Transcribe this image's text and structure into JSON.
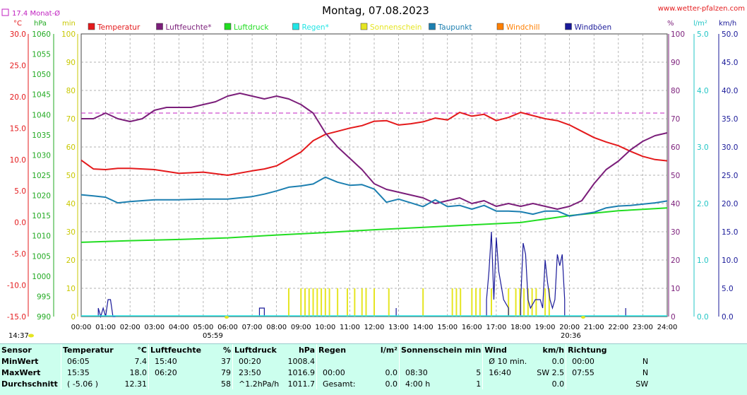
{
  "header": {
    "title": "Montag, 07.08.2023",
    "website": "www.wetter-pfalzen.com",
    "monthly_avg": "17.4 Monat-Ø",
    "monthly_avg_value": 17.4,
    "axis_units_left": [
      "°C",
      "hPa",
      "min"
    ],
    "axis_units_right": [
      "%",
      "l/m²",
      "km/h"
    ]
  },
  "legend": [
    {
      "label": "Temperatur",
      "color": "#e41a1c"
    },
    {
      "label": "Luftfeuchte*",
      "color": "#7b1e7a"
    },
    {
      "label": "Luftdruck",
      "color": "#22dd22"
    },
    {
      "label": "Regen*",
      "color": "#22e5e5"
    },
    {
      "label": "Sonnenschein",
      "color": "#e5e522"
    },
    {
      "label": "Taupunkt",
      "color": "#1c7fb0"
    },
    {
      "label": "Windchill",
      "color": "#ff7f00"
    },
    {
      "label": "Windböen",
      "color": "#1a1a99"
    }
  ],
  "markers": {
    "sunrise": "05:59",
    "sunset": "20:36",
    "current_time": "14:37"
  },
  "chart_data": {
    "type": "line",
    "x_ticks": [
      "00:00",
      "01:00",
      "02:00",
      "03:00",
      "04:00",
      "05:00",
      "06:00",
      "07:00",
      "08:00",
      "09:00",
      "10:00",
      "11:00",
      "12:00",
      "13:00",
      "14:00",
      "15:00",
      "16:00",
      "17:00",
      "18:00",
      "19:00",
      "20:00",
      "21:00",
      "22:00",
      "23:00",
      "24:00"
    ],
    "axes": {
      "temperature": {
        "unit": "°C",
        "range": [
          -15,
          30
        ],
        "ticks": [
          "30.0",
          "25.0",
          "20.0",
          "15.0",
          "10.0",
          "5.0",
          "0.0",
          "-5.0",
          "-10.0",
          "-15.0"
        ]
      },
      "pressure": {
        "unit": "hPa",
        "range": [
          990,
          1060
        ],
        "ticks": [
          "1060",
          "1055",
          "1050",
          "1045",
          "1040",
          "1035",
          "1030",
          "1025",
          "1020",
          "1015",
          "1010",
          "1005",
          "1000",
          "995",
          "990"
        ]
      },
      "minutes": {
        "unit": "min",
        "range": [
          0,
          100
        ],
        "ticks": [
          "100",
          "90",
          "80",
          "70",
          "60",
          "50",
          "40",
          "30",
          "20",
          "10",
          "0"
        ]
      },
      "humidity": {
        "unit": "%",
        "range": [
          0,
          100
        ],
        "ticks": [
          "100",
          "90",
          "80",
          "70",
          "60",
          "50",
          "40",
          "30",
          "20",
          "10",
          "0"
        ]
      },
      "rain": {
        "unit": "l/m²",
        "range": [
          0,
          5
        ],
        "ticks": [
          "5.0",
          "4.0",
          "3.0",
          "2.0",
          "1.0",
          "0.0"
        ]
      },
      "wind": {
        "unit": "km/h",
        "range": [
          0,
          50
        ],
        "ticks": [
          "50.0",
          "45.0",
          "40.0",
          "35.0",
          "30.0",
          "25.0",
          "20.0",
          "15.0",
          "10.0",
          "5.0",
          "0.0"
        ]
      }
    },
    "series": [
      {
        "name": "Temperatur",
        "axis": "temperature",
        "color": "#e41a1c",
        "x": [
          0,
          0.5,
          1,
          1.5,
          2,
          3,
          4,
          5,
          6,
          7,
          7.5,
          8,
          8.5,
          9,
          9.5,
          10,
          10.5,
          11,
          11.5,
          12,
          12.5,
          13,
          13.5,
          14,
          14.5,
          15,
          15.5,
          16,
          16.5,
          17,
          17.5,
          18,
          18.5,
          19,
          19.5,
          20,
          20.5,
          21,
          21.5,
          22,
          22.5,
          23,
          23.5,
          24
        ],
        "y": [
          9.9,
          8.5,
          8.4,
          8.6,
          8.6,
          8.4,
          7.8,
          8.0,
          7.5,
          8.2,
          8.5,
          9.0,
          10.1,
          11.2,
          13.0,
          14.0,
          14.5,
          15.0,
          15.4,
          16.1,
          16.2,
          15.5,
          15.7,
          16.0,
          16.6,
          16.3,
          17.5,
          16.9,
          17.2,
          16.2,
          16.7,
          17.5,
          17.0,
          16.5,
          16.2,
          15.5,
          14.5,
          13.5,
          12.8,
          12.2,
          11.3,
          10.5,
          10.0,
          9.8
        ]
      },
      {
        "name": "Luftfeuchte*",
        "axis": "humidity",
        "color": "#7b1e7a",
        "x": [
          0,
          0.5,
          1,
          1.5,
          2,
          2.5,
          3,
          3.5,
          4,
          4.5,
          5,
          5.5,
          6,
          6.5,
          7,
          7.5,
          8,
          8.5,
          9,
          9.5,
          10,
          10.5,
          11,
          11.5,
          12,
          12.5,
          13,
          13.5,
          14,
          14.5,
          15,
          15.5,
          16,
          16.5,
          17,
          17.5,
          18,
          18.5,
          19,
          19.5,
          20,
          20.5,
          21,
          21.5,
          22,
          22.5,
          23,
          23.5,
          24
        ],
        "y": [
          70,
          70,
          72,
          70,
          69,
          70,
          73,
          74,
          74,
          74,
          75,
          76,
          78,
          79,
          78,
          77,
          78,
          77,
          75,
          72,
          65,
          60,
          56,
          52,
          47,
          45,
          44,
          43,
          42,
          40,
          41,
          42,
          40,
          41,
          39,
          40,
          39,
          40,
          39,
          38,
          39,
          41,
          47,
          52,
          55,
          59,
          62,
          64,
          65
        ]
      },
      {
        "name": "Luftdruck",
        "axis": "pressure",
        "color": "#22dd22",
        "x": [
          0,
          2,
          4,
          6,
          8,
          10,
          12,
          14,
          16,
          18,
          20,
          22,
          24
        ],
        "y": [
          1008.4,
          1008.8,
          1009.1,
          1009.5,
          1010.2,
          1010.8,
          1011.5,
          1012.1,
          1012.7,
          1013.3,
          1015.0,
          1016.2,
          1016.9
        ]
      },
      {
        "name": "Taupunkt",
        "axis": "temperature",
        "color": "#1c7fb0",
        "x": [
          0,
          0.5,
          1,
          1.5,
          2,
          3,
          4,
          5,
          6,
          7,
          7.5,
          8,
          8.5,
          9,
          9.5,
          10,
          10.5,
          11,
          11.5,
          12,
          12.5,
          13,
          13.5,
          14,
          14.5,
          15,
          15.5,
          16,
          16.5,
          17,
          17.5,
          18,
          18.5,
          19,
          19.5,
          20,
          20.5,
          21,
          21.5,
          22,
          22.5,
          23,
          23.5,
          24
        ],
        "y": [
          4.4,
          4.2,
          4.0,
          3.1,
          3.3,
          3.6,
          3.6,
          3.7,
          3.7,
          4.1,
          4.5,
          5.0,
          5.6,
          5.8,
          6.1,
          7.2,
          6.4,
          5.9,
          6.0,
          5.3,
          3.2,
          3.7,
          3.1,
          2.5,
          3.6,
          2.5,
          2.7,
          2.1,
          2.7,
          1.8,
          1.8,
          1.7,
          1.3,
          1.8,
          1.8,
          1.0,
          1.3,
          1.6,
          2.3,
          2.6,
          2.7,
          2.9,
          3.1,
          3.4
        ]
      }
    ],
    "sunshine_minutes": {
      "axis": "minutes",
      "unit": "min per 10-min interval",
      "color": "#e5e522",
      "periods": [
        [
          8.5,
          8.6
        ],
        [
          9.0,
          10.3
        ],
        [
          10.5,
          10.6
        ],
        [
          10.9,
          11.0
        ],
        [
          11.2,
          11.3
        ],
        [
          11.5,
          11.7
        ],
        [
          12.0,
          12.1
        ],
        [
          12.6,
          12.7
        ],
        [
          14.0,
          14.1
        ],
        [
          15.2,
          15.6
        ],
        [
          16.0,
          16.4
        ],
        [
          16.8,
          16.9
        ],
        [
          17.5,
          17.6
        ],
        [
          17.8,
          18.7
        ],
        [
          19.0,
          19.3
        ]
      ]
    },
    "wind_gusts": {
      "axis": "wind",
      "color": "#1a1a99",
      "x": [
        0.7,
        0.8,
        0.9,
        1.0,
        1.1,
        1.2,
        1.3,
        1.4,
        7.3,
        7.5,
        12.9,
        16.6,
        16.7,
        16.8,
        16.9,
        17.0,
        17.1,
        17.3,
        17.5,
        18.0,
        18.1,
        18.2,
        18.3,
        18.4,
        18.6,
        18.8,
        18.9,
        19.0,
        19.1,
        19.2,
        19.3,
        19.4,
        19.5,
        19.6,
        19.7,
        19.8,
        22.3
      ],
      "y": [
        1.5,
        0,
        1.5,
        0,
        3,
        3,
        0,
        0,
        1.5,
        1.5,
        1.5,
        3,
        8,
        15,
        3,
        14,
        8,
        3,
        1.5,
        3,
        13,
        11,
        3,
        1.5,
        3,
        3,
        1.5,
        10,
        6,
        3,
        1.5,
        3,
        11,
        9,
        11,
        3,
        1.5
      ]
    }
  },
  "stats": {
    "headers": [
      "Sensor",
      "Temperatur",
      "°C",
      "Luftfeuchte",
      "%",
      "Luftdruck",
      "hPa",
      "Regen",
      "l/m²",
      "Sonnenschein min",
      "Wind",
      "km/h",
      "Richtung"
    ],
    "rows": [
      {
        "label": "MinWert",
        "temp_time": "06:05",
        "temp_val": "7.4",
        "hum_time": "15:40",
        "hum_val": "37",
        "press_time": "00:20",
        "press_val": "1008.4",
        "rain_time": "",
        "rain_val": "",
        "sun_time": "",
        "sun_val": "",
        "wind_time": "Ø 10 min.",
        "wind_val": "0.0",
        "dir_time": "00:00",
        "dir_val": "N"
      },
      {
        "label": "MaxWert",
        "temp_time": "15:35",
        "temp_val": "18.0",
        "hum_time": "06:20",
        "hum_val": "79",
        "press_time": "23:50",
        "press_val": "1016.9",
        "rain_time": "00:00",
        "rain_val": "0.0",
        "sun_time": "08:30",
        "sun_val": "5",
        "wind_time": "16:40",
        "wind_val": "SW 2.5",
        "dir_time": "07:55",
        "dir_val": "N"
      },
      {
        "label": "Durchschnitt",
        "temp_time": "( -5.06 )",
        "temp_val": "12.31",
        "hum_time": "",
        "hum_val": "58",
        "press_time": "^1.2hPa/h",
        "press_val": "1011.7",
        "rain_time": "Gesamt:",
        "rain_val": "0.0",
        "sun_time": "4:00 h",
        "sun_val": "1",
        "wind_time": "",
        "wind_val": "0.0",
        "dir_time": "",
        "dir_val": "SW"
      }
    ]
  }
}
